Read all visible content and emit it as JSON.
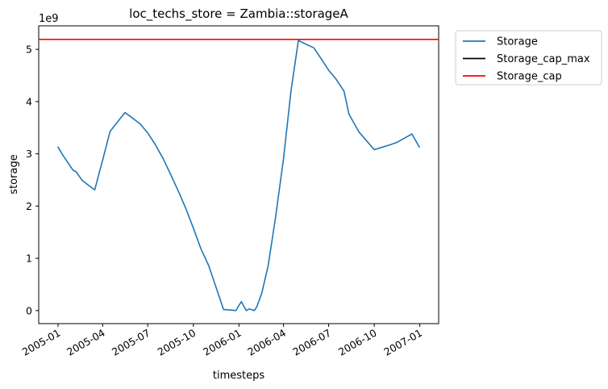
{
  "chart_data": {
    "type": "line",
    "title": "loc_techs_store = Zambia::storageA",
    "xlabel": "timesteps",
    "ylabel": "storage",
    "y_scale_label": "1e9",
    "x_ticks": [
      "2005-01",
      "2005-04",
      "2005-07",
      "2005-10",
      "2006-01",
      "2006-04",
      "2006-07",
      "2006-10",
      "2007-01"
    ],
    "y_ticks": [
      "0",
      "1",
      "2",
      "3",
      "4",
      "5"
    ],
    "xlim": [
      "2004-11-23",
      "2007-02-08"
    ],
    "ylim": [
      -0.25,
      5.45
    ],
    "y_unit_multiplier": 1000000000,
    "grid": false,
    "legend_position": "outside-top-right",
    "series": [
      {
        "name": "Storage",
        "color": "#1f77b4",
        "x": [
          "2005-01-01",
          "2005-01-11",
          "2005-01-31",
          "2005-02-06",
          "2005-02-19",
          "2005-03-06",
          "2005-03-16",
          "2005-04-01",
          "2005-04-16",
          "2005-05-01",
          "2005-05-16",
          "2005-06-01",
          "2005-06-16",
          "2005-07-01",
          "2005-07-16",
          "2005-08-01",
          "2005-08-16",
          "2005-09-01",
          "2005-09-16",
          "2005-10-01",
          "2005-10-16",
          "2005-11-01",
          "2005-12-01",
          "2005-12-16",
          "2005-12-26",
          "2006-01-01",
          "2006-01-06",
          "2006-01-11",
          "2006-01-16",
          "2006-01-21",
          "2006-01-26",
          "2006-02-01",
          "2006-02-06",
          "2006-02-16",
          "2006-03-01",
          "2006-03-16",
          "2006-04-01",
          "2006-04-16",
          "2006-05-01",
          "2006-05-16",
          "2006-06-01",
          "2006-06-16",
          "2006-07-01",
          "2006-07-16",
          "2006-08-01",
          "2006-08-11",
          "2006-08-31",
          "2006-10-01",
          "2006-11-01",
          "2006-11-16",
          "2006-12-01",
          "2006-12-16",
          "2006-12-31"
        ],
        "values": [
          3.13,
          2.97,
          2.69,
          2.66,
          2.49,
          2.38,
          2.31,
          2.88,
          3.43,
          3.61,
          3.79,
          3.68,
          3.57,
          3.4,
          3.18,
          2.91,
          2.61,
          2.28,
          1.95,
          1.58,
          1.19,
          0.86,
          0.02,
          0.01,
          0.0,
          0.1,
          0.17,
          0.08,
          0.0,
          0.03,
          0.02,
          0.0,
          0.07,
          0.33,
          0.86,
          1.79,
          2.91,
          4.2,
          5.17,
          5.1,
          5.03,
          4.82,
          4.6,
          4.43,
          4.2,
          3.76,
          3.42,
          3.08,
          3.17,
          3.22,
          3.3,
          3.38,
          3.13
        ]
      },
      {
        "name": "Storage_cap_max",
        "color": "#000000",
        "x": [],
        "values": []
      },
      {
        "name": "Storage_cap",
        "color": "#ff0000",
        "x": [
          "2004-11-23",
          "2007-02-08"
        ],
        "values": [
          5.19,
          5.19
        ]
      }
    ]
  }
}
